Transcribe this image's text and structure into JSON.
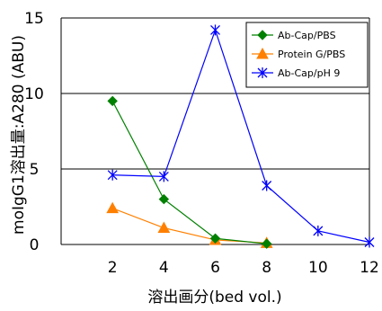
{
  "chart_data": {
    "type": "line",
    "xlabel": "溶出画分(bed vol.)",
    "ylabel": "moIgG1溶出量:A280 (ABU)",
    "xlim": [
      0,
      12
    ],
    "ylim": [
      0,
      15
    ],
    "xticks": [
      2,
      4,
      6,
      8,
      10,
      12
    ],
    "yticks": [
      0,
      5,
      10,
      15
    ],
    "grid_y": [
      5,
      10
    ],
    "legend_position": "top-right",
    "series": [
      {
        "name": "Ab-Cap/PBS",
        "color": "#008000",
        "marker": "diamond",
        "x": [
          2,
          4,
          6,
          8
        ],
        "y": [
          9.5,
          3.0,
          0.4,
          0.05
        ]
      },
      {
        "name": "Protein G/PBS",
        "color": "#ff8000",
        "marker": "triangle",
        "x": [
          2,
          4,
          6,
          8
        ],
        "y": [
          2.4,
          1.1,
          0.3,
          0.1
        ]
      },
      {
        "name": "Ab-Cap/pH 9",
        "color": "#0000ff",
        "marker": "star",
        "x": [
          2,
          4,
          6,
          8,
          10,
          12
        ],
        "y": [
          4.6,
          4.5,
          14.2,
          3.9,
          0.9,
          0.15
        ]
      }
    ]
  }
}
